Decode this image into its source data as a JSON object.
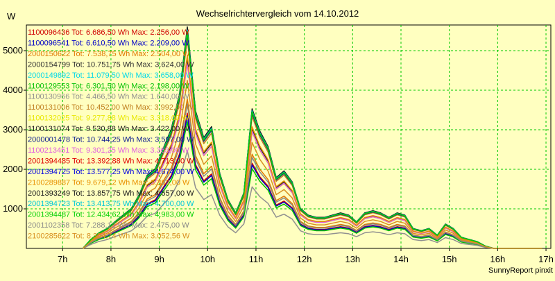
{
  "chart_data": {
    "type": "line",
    "title": "Wechselrichtervergleich vom 14.10.2012",
    "ylabel": "W",
    "xlabel": "",
    "credit": "SunnyReport pinxit",
    "x_ticks": [
      "7h",
      "8h",
      "9h",
      "10h",
      "11h",
      "12h",
      "13h",
      "14h",
      "15h",
      "16h",
      "17h"
    ],
    "y_ticks": [
      1000,
      2000,
      3000,
      4000,
      5000
    ],
    "xlim": [
      6.25,
      17.1
    ],
    "ylim": [
      0,
      5650
    ],
    "grid": true,
    "legend_position": "top-left",
    "x": [
      7.42,
      7.58,
      7.75,
      7.92,
      8.08,
      8.25,
      8.42,
      8.58,
      8.75,
      8.92,
      9.08,
      9.25,
      9.42,
      9.58,
      9.75,
      9.92,
      10.08,
      10.25,
      10.42,
      10.58,
      10.75,
      10.92,
      11.08,
      11.25,
      11.42,
      11.58,
      11.75,
      11.92,
      12.08,
      12.25,
      12.42,
      12.58,
      12.75,
      12.92,
      13.08,
      13.25,
      13.42,
      13.58,
      13.75,
      13.92,
      14.08,
      14.25,
      14.42,
      14.58,
      14.75,
      14.92,
      15.08,
      15.25,
      15.42,
      15.58,
      15.75,
      15.92,
      16.08,
      16.25,
      16.42,
      16.58,
      16.75,
      16.92
    ],
    "base_profile": [
      0,
      0.04,
      0.07,
      0.09,
      0.12,
      0.15,
      0.18,
      0.24,
      0.33,
      0.36,
      0.45,
      0.54,
      0.7,
      1.0,
      0.62,
      0.5,
      0.55,
      0.34,
      0.22,
      0.16,
      0.25,
      0.63,
      0.53,
      0.46,
      0.32,
      0.35,
      0.3,
      0.18,
      0.15,
      0.14,
      0.14,
      0.15,
      0.16,
      0.15,
      0.12,
      0.16,
      0.17,
      0.16,
      0.14,
      0.16,
      0.15,
      0.09,
      0.08,
      0.09,
      0.06,
      0.11,
      0.09,
      0.05,
      0.04,
      0.03,
      0.01,
      0,
      0,
      0,
      0,
      0,
      0,
      0
    ],
    "series": [
      {
        "name": "1100096436",
        "label": "1100096436 Tot: 6.686,50 Wh Max: 2.256,00 W",
        "color": "#d00000",
        "scale": 3420
      },
      {
        "name": "1100096541",
        "label": "1100096541 Tot: 6.610,50 Wh Max: 2.209,00 W",
        "color": "#0000c8",
        "scale": 3350
      },
      {
        "name": "2000150622",
        "label": "2000150622 Tot: 7.538,75 Wh Max: 2.504,00 W",
        "color": "#e07800",
        "scale": 3780
      },
      {
        "name": "2000154799",
        "label": "2000154799 Tot: 10.751,75 Wh Max: 3.624,00 W",
        "color": "#303030",
        "scale": 5430
      },
      {
        "name": "2000149892",
        "label": "2000149892 Tot: 11.079,50 Wh Max: 3.658,00 W",
        "color": "#00d8e8",
        "scale": 5590
      },
      {
        "name": "1100129553",
        "label": "1100129553 Tot: 6.301,50 Wh Max: 2.198,00 W",
        "color": "#00c000",
        "scale": 3200
      },
      {
        "name": "1100130966",
        "label": "1100130966 Tot: 4.466,50 Wh Max: 1.640,00 W",
        "color": "#909090",
        "scale": 2470
      },
      {
        "name": "1100131006",
        "label": "1100131006 Tot: 10.452,00 Wh Max: 3.992,00 W",
        "color": "#c08020",
        "scale": 5300
      },
      {
        "name": "1100132025",
        "label": "1100132025 Tot: 9.277,88 Wh Max: 3.318,00 W",
        "color": "#e8e800",
        "scale": 4680
      },
      {
        "name": "1100131074",
        "label": "1100131074 Tot: 9.530,88 Wh Max: 3.422,00 W",
        "color": "#202020",
        "scale": 4810
      },
      {
        "name": "2000001478",
        "label": "2000001478 Tot: 10.744,25 Wh Max: 3.597,00 W",
        "color": "#102090",
        "scale": 5420
      },
      {
        "name": "1100213451",
        "label": "1100213451 Tot: 9.301,25 Wh Max: 3.363,00 W",
        "color": "#e060e0",
        "scale": 4700
      },
      {
        "name": "2001394485",
        "label": "2001394485 Tot: 13.392,88 Wh Max: 4.713,00 W",
        "color": "#e00000",
        "scale": 5480
      },
      {
        "name": "2001394725",
        "label": "2001394725 Tot: 13.577,25 Wh Max: 4.674,00 W",
        "color": "#0000e0",
        "scale": 5550
      },
      {
        "name": "2100289887",
        "label": "2100289887 Tot: 9.679,12 Wh Max: 3.353,00 W",
        "color": "#e89000",
        "scale": 4880
      },
      {
        "name": "2001393249",
        "label": "2001393249 Tot: 13.857,75 Wh Max: 4.657,00 W",
        "color": "#1a1a1a",
        "scale": 5600
      },
      {
        "name": "2001394723",
        "label": "2001394723 Tot: 13.413,75 Wh Max: 4.700,00 W",
        "color": "#00c8d8",
        "scale": 5520
      },
      {
        "name": "2001394487",
        "label": "2001394487 Tot: 12.434,62 Wh Max: 4.983,00 W",
        "color": "#00d000",
        "scale": 5480
      },
      {
        "name": "2001102358",
        "label": "2001102358 Tot: 7.288,12 Wh Max: 2.475,00 W",
        "color": "#888888",
        "scale": 3650
      },
      {
        "name": "2100285622",
        "label": "2100285622 Tot: 8.394,74 Wh Max: 3.052,56 W",
        "color": "#d89020",
        "scale": 4250
      }
    ]
  }
}
